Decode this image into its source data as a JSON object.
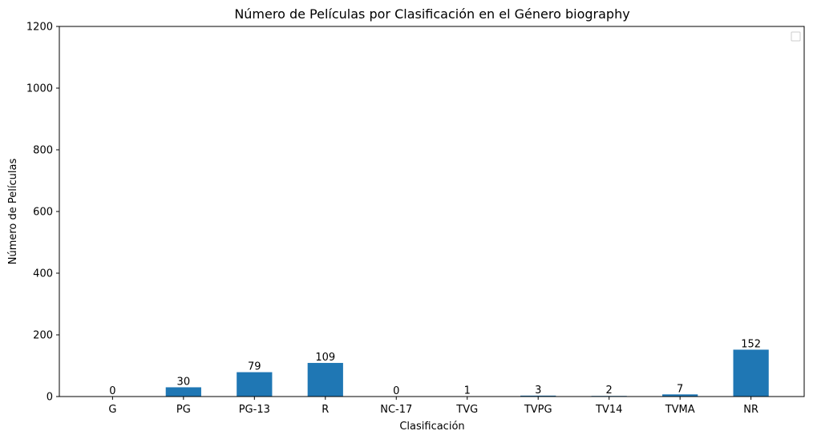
{
  "chart_data": {
    "type": "bar",
    "title": "Número de Películas por Clasificación en el Género biography",
    "xlabel": "Clasificación",
    "ylabel": "Número de Películas",
    "categories": [
      "G",
      "PG",
      "PG-13",
      "R",
      "NC-17",
      "TVG",
      "TVPG",
      "TV14",
      "TVMA",
      "NR"
    ],
    "values": [
      0,
      30,
      79,
      109,
      0,
      1,
      3,
      2,
      7,
      152
    ],
    "ylim": [
      0,
      1200
    ],
    "yticks": [
      0,
      200,
      400,
      600,
      800,
      1000,
      1200
    ],
    "grid": false,
    "legend": "top-right, empty",
    "bar_color": "#1f77b4"
  }
}
